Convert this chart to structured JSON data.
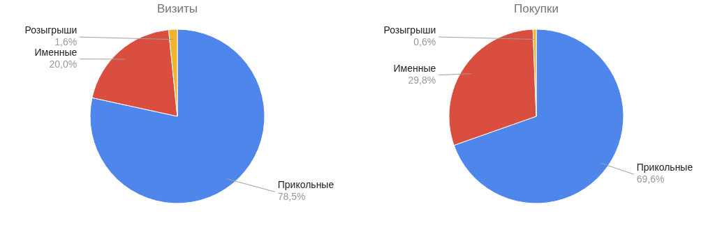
{
  "chart_data": [
    {
      "type": "pie",
      "title": "Визиты",
      "categories": [
        "Прикольные",
        "Именные",
        "Розыгрыши"
      ],
      "values": [
        78.5,
        20.0,
        1.6
      ],
      "colors": [
        "#4f86ec",
        "#d94e3e",
        "#f2b42e"
      ],
      "value_labels": [
        "78,5%",
        "20,0%",
        "1,6%"
      ],
      "legend": false
    },
    {
      "type": "pie",
      "title": "Покупки",
      "categories": [
        "Прикольные",
        "Именные",
        "Розыгрыши"
      ],
      "values": [
        69.6,
        29.8,
        0.6
      ],
      "colors": [
        "#4f86ec",
        "#d94e3e",
        "#f2b42e"
      ],
      "value_labels": [
        "69,6%",
        "29,8%",
        "0,6%"
      ],
      "legend": false
    }
  ]
}
